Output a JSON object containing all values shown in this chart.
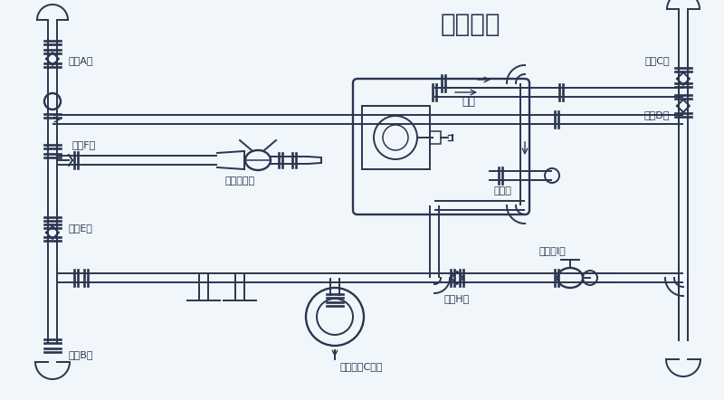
{
  "title": "水泵加水",
  "title_fontsize": 20,
  "bg_color": "#f0f6fa",
  "line_color": "#2a3550",
  "labels": {
    "ball_valve_A": "球阀A关",
    "ball_valve_B": "球阀B关",
    "ball_valve_C": "球阀C关",
    "ball_valve_D": "球阀D关",
    "ball_valve_E": "球阀E关",
    "ball_valve_F": "球阀F关",
    "ball_valve_H": "球阀H开",
    "fire_hydrant_I": "消防栓I关",
    "water_pump": "水泵",
    "tank_port": "罐体口",
    "spray_nozzle": "洒水炮出口",
    "three_way_valve": "三通球阀C加水"
  }
}
